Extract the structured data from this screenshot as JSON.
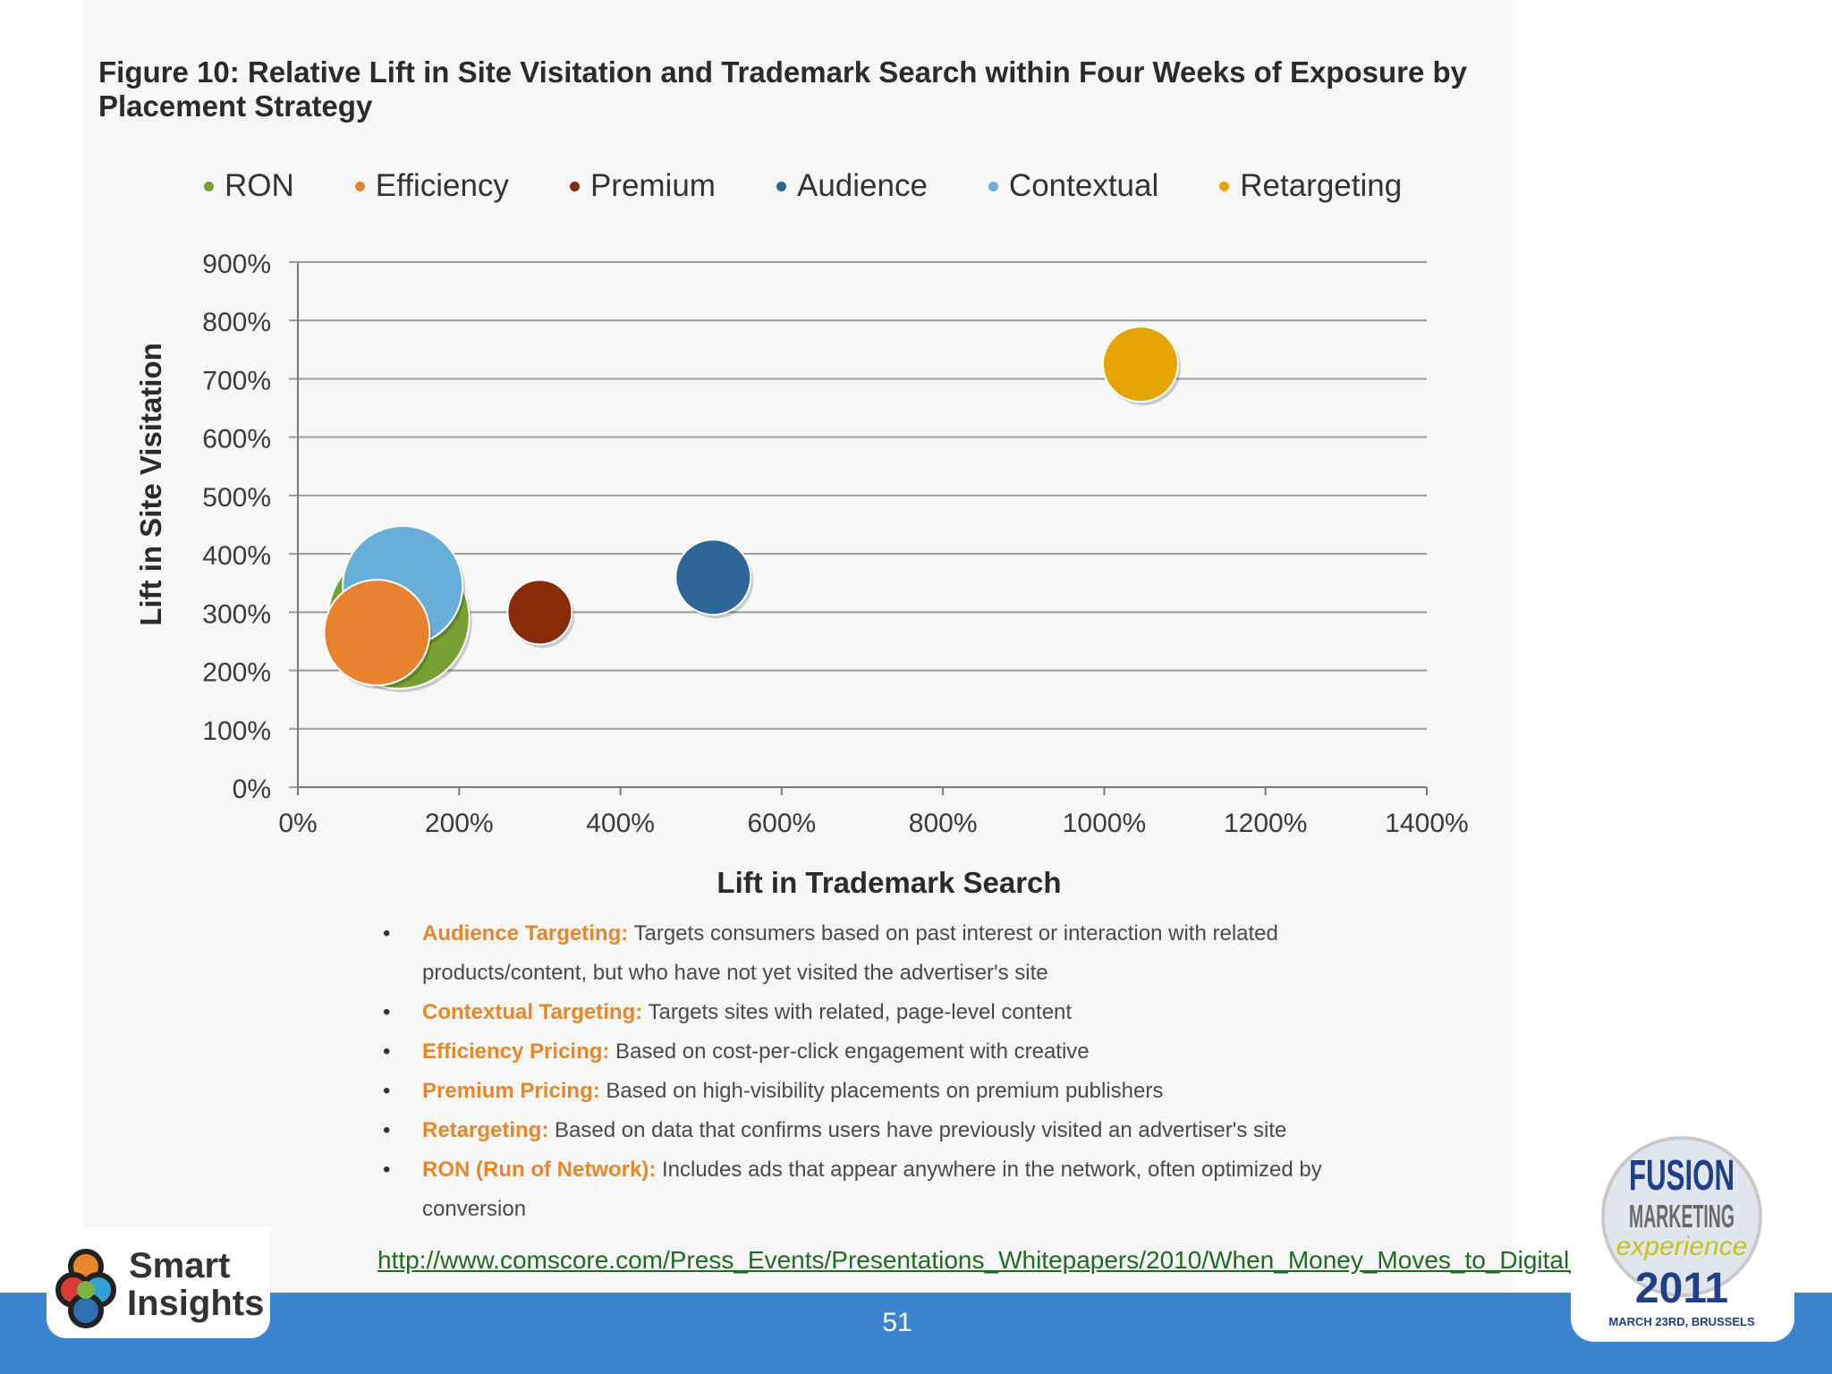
{
  "figure": {
    "title": "Figure 10: Relative Lift in Site Visitation and Trademark Search within Four Weeks of Exposure by Placement Strategy"
  },
  "chart_data": {
    "type": "scatter",
    "subtype": "bubble",
    "xlabel": "Lift in Trademark Search",
    "ylabel": "Lift in Site Visitation",
    "xlim": [
      0,
      1400
    ],
    "ylim": [
      0,
      900
    ],
    "x_ticks": [
      "0%",
      "200%",
      "400%",
      "600%",
      "800%",
      "1000%",
      "1200%",
      "1400%"
    ],
    "y_ticks": [
      "0%",
      "100%",
      "200%",
      "300%",
      "400%",
      "500%",
      "600%",
      "700%",
      "800%",
      "900%"
    ],
    "grid": "horizontal",
    "legend_position": "top",
    "series": [
      {
        "name": "RON",
        "x": 125,
        "y": 290,
        "size": 158,
        "color": "#77a032"
      },
      {
        "name": "Efficiency",
        "x": 98,
        "y": 265,
        "size": 118,
        "color": "#e8822e"
      },
      {
        "name": "Premium",
        "x": 300,
        "y": 300,
        "size": 72,
        "color": "#8a2b08"
      },
      {
        "name": "Audience",
        "x": 515,
        "y": 360,
        "size": 84,
        "color": "#2e6597"
      },
      {
        "name": "Contextual",
        "x": 130,
        "y": 345,
        "size": 134,
        "color": "#67aed8"
      },
      {
        "name": "Retargeting",
        "x": 1045,
        "y": 725,
        "size": 84,
        "color": "#e6a400"
      }
    ]
  },
  "notes": [
    {
      "term": "Audience Targeting:",
      "text": " Targets consumers based on past interest or interaction with related products/content, but who have not yet visited the advertiser's site"
    },
    {
      "term": "Contextual Targeting:",
      "text": " Targets sites with related, page-level content"
    },
    {
      "term": "Efficiency Pricing:",
      "text": "  Based on cost-per-click engagement with creative"
    },
    {
      "term": "Premium Pricing:",
      "text": " Based on high-visibility placements on premium publishers"
    },
    {
      "term": "Retargeting:",
      "text": " Based on data that confirms users have previously visited an advertiser's site"
    },
    {
      "term": "RON (Run of Network):",
      "text": " Includes ads that appear anywhere in the network, often optimized by conversion"
    }
  ],
  "bullet_char": "•",
  "source_url": "http://www.comscore.com/Press_Events/Presentations_Whitepapers/2010/When_Money_Moves_to_Digital_Where_Shoul",
  "page_number": "51",
  "logo": {
    "line1": "Smart",
    "line2": "Insights"
  },
  "event_badge": {
    "line1": "FUSION",
    "line2": "MARKETING",
    "line3": "experience",
    "year": "2011",
    "date": "MARCH 23RD, BRUSSELS"
  }
}
